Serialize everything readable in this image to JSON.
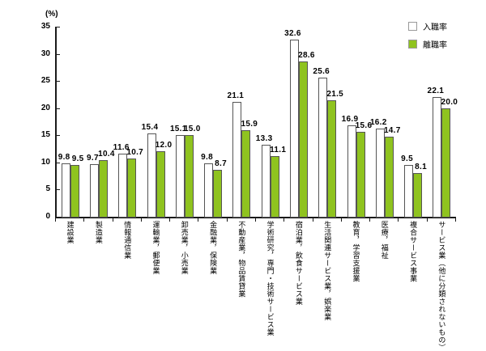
{
  "chart_data": {
    "type": "bar",
    "unit": "(%)",
    "categories": [
      "建設業",
      "製造業",
      "情報通信業",
      "運輸業，郵便業",
      "卸売業，小売業",
      "金融業，保険業",
      "不動産業，物品賃貸業",
      "学術研究，専門・技術サービス業",
      "宿泊業，飲食サービス業",
      "生活関連サービス業，娯楽業",
      "教育，学習支援業",
      "医療，福祉",
      "複合サービス事業",
      "サービス業（他に分類されないもの）"
    ],
    "series": [
      {
        "name": "入職率",
        "color": "#FFFFFF",
        "values": [
          9.8,
          9.7,
          11.6,
          15.4,
          15.1,
          9.8,
          21.1,
          13.3,
          32.6,
          25.6,
          16.9,
          16.2,
          9.5,
          22.1
        ]
      },
      {
        "name": "離職率",
        "color": "#8FC31F",
        "values": [
          9.5,
          10.4,
          10.7,
          12.0,
          15.0,
          8.7,
          15.9,
          11.1,
          28.6,
          21.5,
          15.6,
          14.7,
          8.1,
          20.0
        ]
      }
    ],
    "ylim": [
      0,
      35
    ],
    "yticks": [
      0,
      5,
      10,
      15,
      20,
      25,
      30,
      35
    ],
    "grid": false,
    "legend_position": "top-right",
    "value_labels": true
  },
  "colors": {
    "bar_green": "#8FC31F",
    "bar_outline": "#555555",
    "axis": "#1A1A1A",
    "text": "#000000"
  }
}
